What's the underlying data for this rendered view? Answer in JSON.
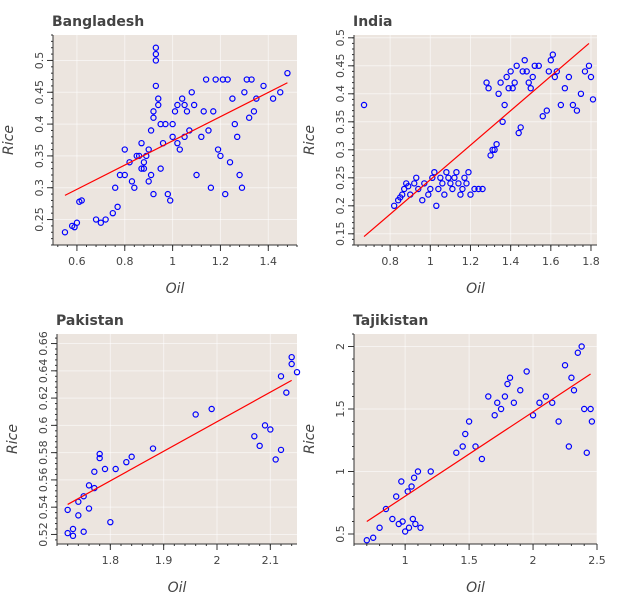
{
  "chart_data": [
    {
      "type": "scatter",
      "title": "Bangladesh",
      "xlabel": "Oil",
      "ylabel": "Rice",
      "xlim": [
        0.5,
        1.52
      ],
      "ylim": [
        0.21,
        0.54
      ],
      "xticks": [
        0.6,
        0.8,
        1,
        1.2,
        1.4
      ],
      "yticks": [
        0.25,
        0.3,
        0.35,
        0.4,
        0.45,
        0.5
      ],
      "grid": true,
      "points": [
        [
          0.55,
          0.23
        ],
        [
          0.58,
          0.24
        ],
        [
          0.59,
          0.238
        ],
        [
          0.6,
          0.245
        ],
        [
          0.61,
          0.278
        ],
        [
          0.62,
          0.28
        ],
        [
          0.68,
          0.25
        ],
        [
          0.7,
          0.245
        ],
        [
          0.72,
          0.25
        ],
        [
          0.75,
          0.26
        ],
        [
          0.76,
          0.3
        ],
        [
          0.77,
          0.27
        ],
        [
          0.78,
          0.32
        ],
        [
          0.8,
          0.36
        ],
        [
          0.8,
          0.32
        ],
        [
          0.82,
          0.34
        ],
        [
          0.83,
          0.31
        ],
        [
          0.84,
          0.3
        ],
        [
          0.85,
          0.35
        ],
        [
          0.86,
          0.35
        ],
        [
          0.87,
          0.33
        ],
        [
          0.87,
          0.37
        ],
        [
          0.88,
          0.34
        ],
        [
          0.88,
          0.33
        ],
        [
          0.89,
          0.35
        ],
        [
          0.9,
          0.36
        ],
        [
          0.9,
          0.31
        ],
        [
          0.91,
          0.39
        ],
        [
          0.91,
          0.32
        ],
        [
          0.92,
          0.41
        ],
        [
          0.92,
          0.42
        ],
        [
          0.92,
          0.29
        ],
        [
          0.93,
          0.52
        ],
        [
          0.93,
          0.51
        ],
        [
          0.93,
          0.5
        ],
        [
          0.93,
          0.46
        ],
        [
          0.94,
          0.44
        ],
        [
          0.94,
          0.43
        ],
        [
          0.95,
          0.33
        ],
        [
          0.95,
          0.4
        ],
        [
          0.96,
          0.37
        ],
        [
          0.97,
          0.4
        ],
        [
          0.98,
          0.29
        ],
        [
          0.99,
          0.28
        ],
        [
          1.0,
          0.4
        ],
        [
          1.0,
          0.38
        ],
        [
          1.01,
          0.42
        ],
        [
          1.02,
          0.43
        ],
        [
          1.02,
          0.37
        ],
        [
          1.03,
          0.36
        ],
        [
          1.04,
          0.44
        ],
        [
          1.05,
          0.38
        ],
        [
          1.05,
          0.43
        ],
        [
          1.06,
          0.42
        ],
        [
          1.07,
          0.39
        ],
        [
          1.08,
          0.45
        ],
        [
          1.09,
          0.43
        ],
        [
          1.1,
          0.32
        ],
        [
          1.12,
          0.38
        ],
        [
          1.13,
          0.42
        ],
        [
          1.14,
          0.47
        ],
        [
          1.15,
          0.39
        ],
        [
          1.16,
          0.3
        ],
        [
          1.17,
          0.42
        ],
        [
          1.18,
          0.47
        ],
        [
          1.19,
          0.36
        ],
        [
          1.2,
          0.35
        ],
        [
          1.21,
          0.47
        ],
        [
          1.22,
          0.29
        ],
        [
          1.23,
          0.47
        ],
        [
          1.24,
          0.34
        ],
        [
          1.25,
          0.44
        ],
        [
          1.26,
          0.4
        ],
        [
          1.27,
          0.38
        ],
        [
          1.28,
          0.32
        ],
        [
          1.29,
          0.3
        ],
        [
          1.3,
          0.45
        ],
        [
          1.31,
          0.47
        ],
        [
          1.32,
          0.41
        ],
        [
          1.33,
          0.47
        ],
        [
          1.34,
          0.42
        ],
        [
          1.35,
          0.44
        ],
        [
          1.38,
          0.46
        ],
        [
          1.42,
          0.44
        ],
        [
          1.45,
          0.45
        ],
        [
          1.48,
          0.48
        ]
      ],
      "fit": [
        [
          0.55,
          0.288
        ],
        [
          1.48,
          0.465
        ]
      ]
    },
    {
      "type": "scatter",
      "title": "India",
      "xlabel": "Oil",
      "ylabel": "Rice",
      "xlim": [
        0.62,
        1.83
      ],
      "ylim": [
        0.13,
        0.505
      ],
      "xticks": [
        0.8,
        1,
        1.2,
        1.4,
        1.6,
        1.8
      ],
      "yticks": [
        0.15,
        0.2,
        0.25,
        0.3,
        0.35,
        0.4,
        0.45,
        0.5
      ],
      "grid": true,
      "points": [
        [
          0.67,
          0.38
        ],
        [
          0.82,
          0.2
        ],
        [
          0.84,
          0.21
        ],
        [
          0.85,
          0.215
        ],
        [
          0.86,
          0.22
        ],
        [
          0.87,
          0.23
        ],
        [
          0.88,
          0.24
        ],
        [
          0.89,
          0.235
        ],
        [
          0.9,
          0.22
        ],
        [
          0.92,
          0.24
        ],
        [
          0.93,
          0.25
        ],
        [
          0.94,
          0.23
        ],
        [
          0.96,
          0.21
        ],
        [
          0.97,
          0.24
        ],
        [
          0.99,
          0.22
        ],
        [
          1.0,
          0.23
        ],
        [
          1.01,
          0.25
        ],
        [
          1.02,
          0.26
        ],
        [
          1.03,
          0.2
        ],
        [
          1.04,
          0.23
        ],
        [
          1.05,
          0.25
        ],
        [
          1.06,
          0.24
        ],
        [
          1.07,
          0.22
        ],
        [
          1.08,
          0.26
        ],
        [
          1.09,
          0.25
        ],
        [
          1.1,
          0.24
        ],
        [
          1.11,
          0.23
        ],
        [
          1.12,
          0.25
        ],
        [
          1.13,
          0.26
        ],
        [
          1.14,
          0.24
        ],
        [
          1.15,
          0.22
        ],
        [
          1.16,
          0.23
        ],
        [
          1.17,
          0.25
        ],
        [
          1.18,
          0.24
        ],
        [
          1.19,
          0.26
        ],
        [
          1.2,
          0.22
        ],
        [
          1.22,
          0.23
        ],
        [
          1.24,
          0.23
        ],
        [
          1.26,
          0.23
        ],
        [
          1.28,
          0.42
        ],
        [
          1.29,
          0.41
        ],
        [
          1.3,
          0.29
        ],
        [
          1.31,
          0.3
        ],
        [
          1.32,
          0.3
        ],
        [
          1.33,
          0.31
        ],
        [
          1.34,
          0.4
        ],
        [
          1.35,
          0.42
        ],
        [
          1.36,
          0.35
        ],
        [
          1.37,
          0.38
        ],
        [
          1.38,
          0.43
        ],
        [
          1.39,
          0.41
        ],
        [
          1.4,
          0.44
        ],
        [
          1.41,
          0.41
        ],
        [
          1.42,
          0.42
        ],
        [
          1.43,
          0.45
        ],
        [
          1.44,
          0.33
        ],
        [
          1.45,
          0.34
        ],
        [
          1.46,
          0.44
        ],
        [
          1.47,
          0.46
        ],
        [
          1.48,
          0.44
        ],
        [
          1.49,
          0.42
        ],
        [
          1.5,
          0.41
        ],
        [
          1.51,
          0.43
        ],
        [
          1.52,
          0.45
        ],
        [
          1.54,
          0.45
        ],
        [
          1.56,
          0.36
        ],
        [
          1.58,
          0.37
        ],
        [
          1.59,
          0.44
        ],
        [
          1.6,
          0.46
        ],
        [
          1.61,
          0.47
        ],
        [
          1.62,
          0.43
        ],
        [
          1.63,
          0.44
        ],
        [
          1.65,
          0.38
        ],
        [
          1.67,
          0.41
        ],
        [
          1.69,
          0.43
        ],
        [
          1.71,
          0.38
        ],
        [
          1.73,
          0.37
        ],
        [
          1.75,
          0.4
        ],
        [
          1.77,
          0.44
        ],
        [
          1.79,
          0.45
        ],
        [
          1.8,
          0.43
        ],
        [
          1.81,
          0.39
        ]
      ],
      "fit": [
        [
          0.67,
          0.145
        ],
        [
          1.79,
          0.49
        ]
      ]
    },
    {
      "type": "scatter",
      "title": "Pakistan",
      "xlabel": "Oil",
      "ylabel": "Rice",
      "xlim": [
        1.7,
        2.15
      ],
      "ylim": [
        0.513,
        0.667
      ],
      "xticks": [
        1.8,
        1.9,
        2,
        2.1
      ],
      "yticks": [
        0.52,
        0.54,
        0.56,
        0.58,
        0.6,
        0.62,
        0.64,
        0.66
      ],
      "grid": true,
      "points": [
        [
          1.72,
          0.538
        ],
        [
          1.72,
          0.521
        ],
        [
          1.73,
          0.519
        ],
        [
          1.73,
          0.524
        ],
        [
          1.74,
          0.534
        ],
        [
          1.74,
          0.544
        ],
        [
          1.75,
          0.522
        ],
        [
          1.75,
          0.548
        ],
        [
          1.76,
          0.556
        ],
        [
          1.76,
          0.539
        ],
        [
          1.77,
          0.554
        ],
        [
          1.77,
          0.566
        ],
        [
          1.78,
          0.576
        ],
        [
          1.78,
          0.579
        ],
        [
          1.79,
          0.568
        ],
        [
          1.8,
          0.529
        ],
        [
          1.81,
          0.568
        ],
        [
          1.83,
          0.573
        ],
        [
          1.84,
          0.577
        ],
        [
          1.88,
          0.583
        ],
        [
          1.96,
          0.608
        ],
        [
          1.99,
          0.612
        ],
        [
          2.07,
          0.592
        ],
        [
          2.08,
          0.585
        ],
        [
          2.09,
          0.6
        ],
        [
          2.1,
          0.597
        ],
        [
          2.11,
          0.575
        ],
        [
          2.12,
          0.582
        ],
        [
          2.12,
          0.636
        ],
        [
          2.13,
          0.624
        ],
        [
          2.14,
          0.645
        ],
        [
          2.14,
          0.65
        ],
        [
          2.15,
          0.639
        ]
      ],
      "fit": [
        [
          1.72,
          0.542
        ],
        [
          2.14,
          0.633
        ]
      ]
    },
    {
      "type": "scatter",
      "title": "Tajikistan",
      "xlabel": "Oil",
      "ylabel": "Rice",
      "xlim": [
        0.6,
        2.5
      ],
      "ylim": [
        0.42,
        2.1
      ],
      "xticks": [
        1,
        1.5,
        2,
        2.5
      ],
      "yticks": [
        0.5,
        1,
        1.5,
        2
      ],
      "grid": true,
      "points": [
        [
          0.7,
          0.45
        ],
        [
          0.75,
          0.47
        ],
        [
          0.8,
          0.55
        ],
        [
          0.85,
          0.7
        ],
        [
          0.9,
          0.62
        ],
        [
          0.93,
          0.8
        ],
        [
          0.95,
          0.58
        ],
        [
          0.97,
          0.92
        ],
        [
          0.98,
          0.6
        ],
        [
          1.0,
          0.52
        ],
        [
          1.02,
          0.84
        ],
        [
          1.03,
          0.55
        ],
        [
          1.05,
          0.88
        ],
        [
          1.06,
          0.62
        ],
        [
          1.07,
          0.95
        ],
        [
          1.08,
          0.58
        ],
        [
          1.1,
          1.0
        ],
        [
          1.12,
          0.55
        ],
        [
          1.2,
          1.0
        ],
        [
          1.4,
          1.15
        ],
        [
          1.45,
          1.2
        ],
        [
          1.47,
          1.3
        ],
        [
          1.5,
          1.4
        ],
        [
          1.55,
          1.2
        ],
        [
          1.6,
          1.1
        ],
        [
          1.65,
          1.6
        ],
        [
          1.7,
          1.45
        ],
        [
          1.72,
          1.55
        ],
        [
          1.75,
          1.5
        ],
        [
          1.78,
          1.6
        ],
        [
          1.8,
          1.7
        ],
        [
          1.82,
          1.75
        ],
        [
          1.85,
          1.55
        ],
        [
          1.9,
          1.65
        ],
        [
          1.95,
          1.8
        ],
        [
          2.0,
          1.45
        ],
        [
          2.05,
          1.55
        ],
        [
          2.1,
          1.6
        ],
        [
          2.15,
          1.55
        ],
        [
          2.2,
          1.4
        ],
        [
          2.25,
          1.85
        ],
        [
          2.28,
          1.2
        ],
        [
          2.3,
          1.75
        ],
        [
          2.32,
          1.65
        ],
        [
          2.35,
          1.95
        ],
        [
          2.38,
          2.0
        ],
        [
          2.4,
          1.5
        ],
        [
          2.42,
          1.15
        ],
        [
          2.45,
          1.5
        ],
        [
          2.46,
          1.4
        ]
      ],
      "fit": [
        [
          0.7,
          0.6
        ],
        [
          2.45,
          1.78
        ]
      ]
    }
  ]
}
